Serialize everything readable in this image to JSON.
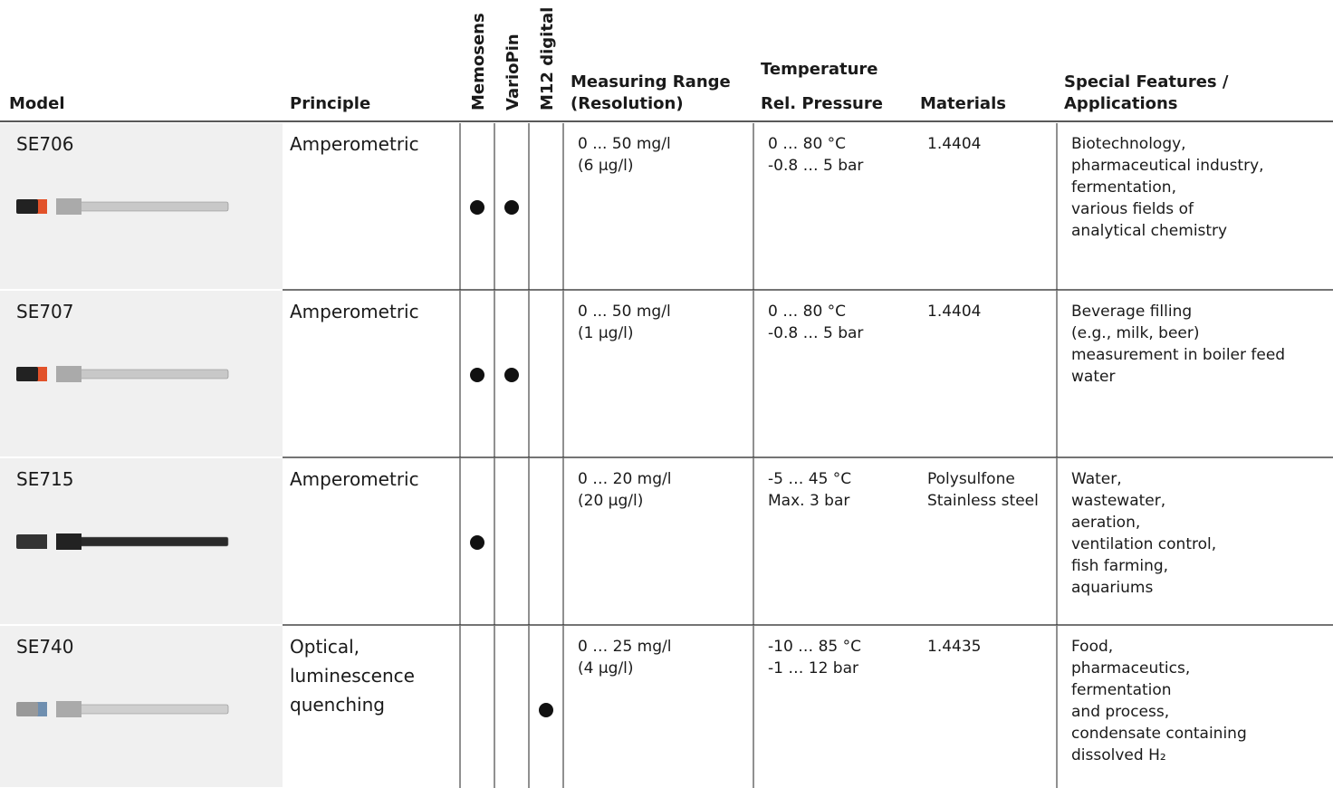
{
  "table": {
    "headers": {
      "model": "Model",
      "principle": "Principle",
      "memosens": "Memosens",
      "variopin": "VarioPin",
      "m12": "M12 digital",
      "range": [
        "Measuring Range",
        "(Resolution)"
      ],
      "conditions": [
        "Temperature",
        "Rel. Pressure"
      ],
      "materials": "Materials",
      "features": [
        "Special Features /",
        "Applications"
      ]
    },
    "rows": [
      {
        "model": "SE706",
        "principle": [
          "Amperometric"
        ],
        "memosens": true,
        "variopin": true,
        "m12": false,
        "range": [
          "0 ... 50 mg/l",
          "(6 µg/l)"
        ],
        "conditions": [
          "0 … 80 °C",
          "-0.8 … 5 bar"
        ],
        "materials": [
          "1.4404"
        ],
        "features": [
          "Biotechnology,",
          "pharmaceutical industry,",
          "fermentation,",
          "various fields of",
          "analytical chemistry"
        ]
      },
      {
        "model": "SE707",
        "principle": [
          "Amperometric"
        ],
        "memosens": true,
        "variopin": true,
        "m12": false,
        "range": [
          "0 ... 50 mg/l",
          "(1 µg/l)"
        ],
        "conditions": [
          "0 … 80 °C",
          "-0.8 … 5 bar"
        ],
        "materials": [
          "1.4404"
        ],
        "features": [
          "Beverage filling",
          "(e.g., milk, beer)",
          "measurement in boiler feed",
          "water"
        ]
      },
      {
        "model": "SE715",
        "principle": [
          "Amperometric"
        ],
        "memosens": true,
        "variopin": false,
        "m12": false,
        "range": [
          "0 … 20 mg/l",
          "(20 µg/l)"
        ],
        "conditions": [
          "-5 … 45 °C",
          "Max. 3 bar"
        ],
        "materials": [
          "Polysulfone",
          "Stainless steel"
        ],
        "features": [
          "Water,",
          "wastewater,",
          "aeration,",
          "ventilation control,",
          "fish farming,",
          "aquariums"
        ]
      },
      {
        "model": "SE740",
        "principle": [
          "Optical,",
          "luminescence",
          "quenching"
        ],
        "memosens": false,
        "variopin": false,
        "m12": true,
        "range": [
          "0 … 25 mg/l",
          "(4 µg/l)"
        ],
        "conditions": [
          "-10 … 85 °C",
          "-1 … 12 bar"
        ],
        "materials": [
          "1.4435"
        ],
        "features": [
          "Food,",
          "pharmaceutics,",
          "fermentation",
          "and process,",
          "condensate containing",
          "dissolved H₂"
        ]
      }
    ]
  }
}
